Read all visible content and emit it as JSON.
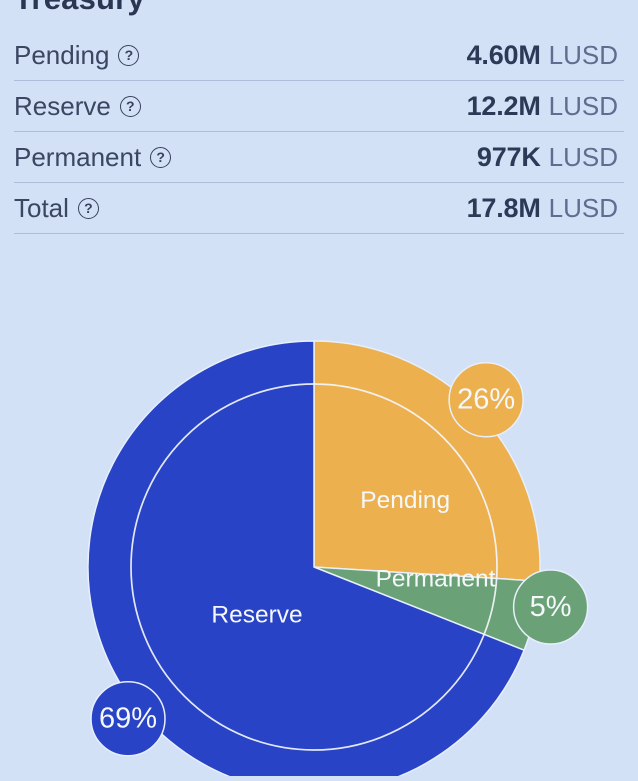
{
  "header": {
    "title": "Treasury"
  },
  "table": {
    "rows": [
      {
        "label": "Pending",
        "help_icon": "question-circle-icon",
        "help_glyph": "?",
        "value": "4.60M",
        "unit": "LUSD"
      },
      {
        "label": "Reserve",
        "help_icon": "question-circle-icon",
        "help_glyph": "?",
        "value": "12.2M",
        "unit": "LUSD"
      },
      {
        "label": "Permanent",
        "help_icon": "question-circle-icon",
        "help_glyph": "?",
        "value": "977K",
        "unit": "LUSD"
      },
      {
        "label": "Total",
        "help_icon": "question-circle-icon",
        "help_glyph": "?",
        "value": "17.8M",
        "unit": "LUSD"
      }
    ]
  },
  "chart_data": {
    "type": "pie",
    "unit": "LUSD",
    "direction": "clockwise",
    "start_angle_deg": 0,
    "slices": [
      {
        "label": "Pending",
        "percent": 26,
        "percent_label": "26%",
        "value": "4.60M",
        "color": "#ecb04e"
      },
      {
        "label": "Permanent",
        "percent": 5,
        "percent_label": "5%",
        "value": "977K",
        "color": "#6aa176"
      },
      {
        "label": "Reserve",
        "percent": 69,
        "percent_label": "69%",
        "value": "12.2M",
        "color": "#2843c5"
      }
    ],
    "inner_ring": true,
    "legend": "labels-inside-slices"
  },
  "colors": {
    "background": "#d3e1f6",
    "divider": "rgba(88,110,152,0.30)",
    "slice_stroke": "#e7effb",
    "inner_ring_stroke": "#f2f6fc",
    "text_on_slices": "#f5f8fb"
  }
}
